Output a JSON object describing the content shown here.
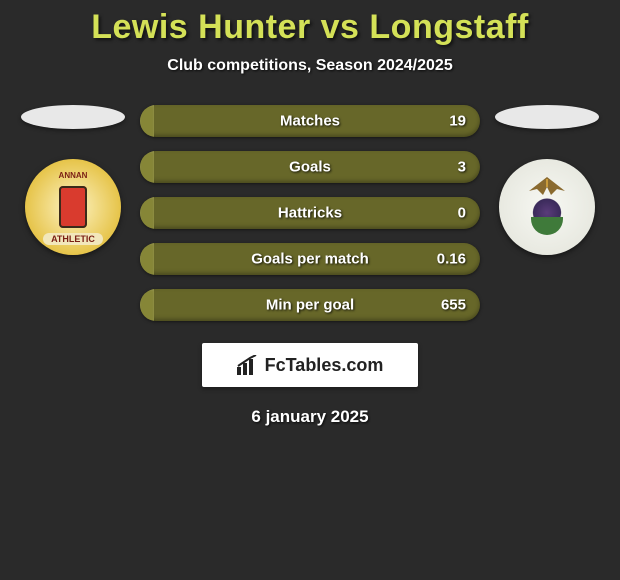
{
  "title": "Lewis Hunter vs Longstaff",
  "subtitle": "Club competitions, Season 2024/2025",
  "date": "6 january 2025",
  "brand": "FcTables.com",
  "colors": {
    "background": "#2a2a2a",
    "title": "#d4e157",
    "bar_outer": "#676729",
    "bar_inner": "#868637",
    "text": "#ffffff"
  },
  "stat_bars": [
    {
      "label": "Matches",
      "left": "",
      "right": "19",
      "fill_pct": 4
    },
    {
      "label": "Goals",
      "left": "",
      "right": "3",
      "fill_pct": 4
    },
    {
      "label": "Hattricks",
      "left": "",
      "right": "0",
      "fill_pct": 4
    },
    {
      "label": "Goals per match",
      "left": "",
      "right": "0.16",
      "fill_pct": 4
    },
    {
      "label": "Min per goal",
      "left": "",
      "right": "655",
      "fill_pct": 4
    }
  ],
  "bar_style": {
    "height": 32,
    "radius": 16,
    "gap": 14,
    "font_size": 15
  },
  "badges": {
    "left": {
      "name": "annan-athletic-badge",
      "top_text": "ANNAN",
      "bottom_text": "ATHLETIC"
    },
    "right": {
      "name": "inverness-ct-badge"
    }
  }
}
